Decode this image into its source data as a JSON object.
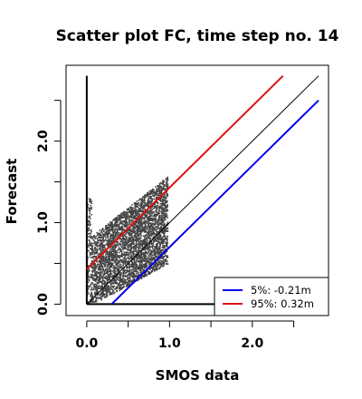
{
  "chart_data": {
    "type": "scatter",
    "title": "Scatter plot FC, time step no. 14",
    "xlabel": "SMOS data",
    "ylabel": "Forecast",
    "xlim": [
      -0.25,
      2.92
    ],
    "ylim": [
      -0.14,
      2.93
    ],
    "x_ticks": [
      0.0,
      0.5,
      1.0,
      1.5,
      2.0,
      2.5
    ],
    "x_tick_labels": [
      "0.0",
      "",
      "1.0",
      "",
      "2.0",
      ""
    ],
    "y_ticks": [
      0.0,
      0.5,
      1.0,
      1.5,
      2.0,
      2.5
    ],
    "y_tick_labels": [
      "0.0",
      "",
      "1.0",
      "",
      "2.0",
      ""
    ],
    "reference_lines": [
      {
        "name": "1:1",
        "color": "#000000",
        "from": [
          0.0,
          0.0
        ],
        "to": [
          2.8,
          2.8
        ]
      },
      {
        "name": "5%",
        "color": "#0000ee",
        "from": [
          0.3,
          0.0
        ],
        "to": [
          2.8,
          2.5
        ]
      },
      {
        "name": "95%",
        "color": "#dd1111",
        "from": [
          0.0,
          0.43
        ],
        "to": [
          2.37,
          2.8
        ]
      }
    ],
    "vertical_segment": {
      "x": 0.0,
      "y_from": 0.0,
      "y_to": 2.8,
      "color": "#000000"
    },
    "horizontal_segment": {
      "y": 0.0,
      "x_from": 0.0,
      "x_to": 2.8,
      "color": "#000000"
    },
    "scatter_cloud": {
      "color": "#444444",
      "x_range": [
        0.0,
        0.98
      ],
      "y_range": [
        0.0,
        1.72
      ],
      "point_count": 4200
    },
    "legend": {
      "placement": "bottom-right",
      "entries": [
        {
          "label": "5%: -0.21m",
          "color": "#0000ee"
        },
        {
          "label": "95%:  0.32m",
          "color": "#dd1111"
        }
      ]
    }
  }
}
